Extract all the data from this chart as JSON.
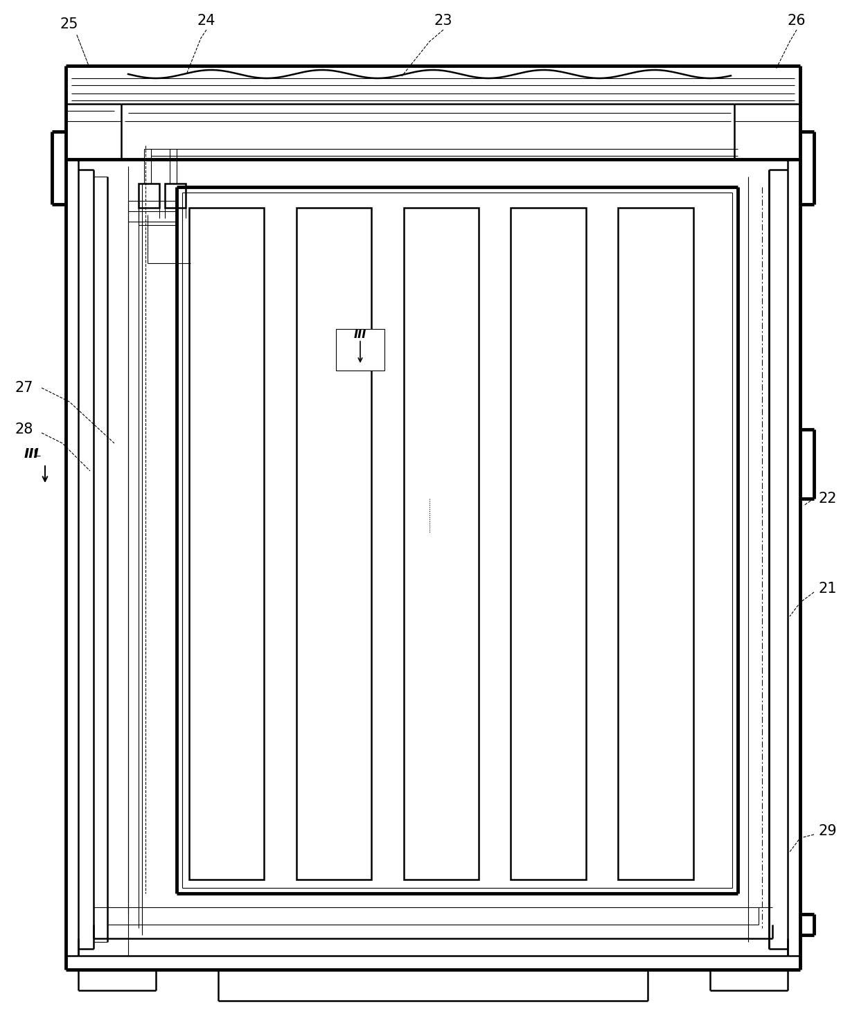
{
  "bg": "#ffffff",
  "lc": "#000000",
  "fw": 12.4,
  "fh": 14.8,
  "lw1": 0.8,
  "lw2": 1.8,
  "lw3": 3.5,
  "fs": 15
}
